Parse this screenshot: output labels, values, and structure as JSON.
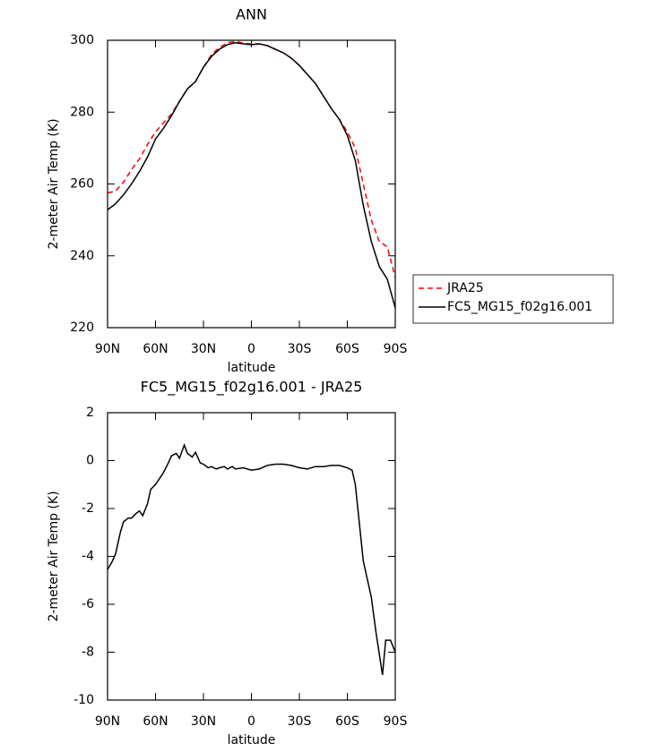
{
  "chart_data": [
    {
      "type": "line",
      "title": "ANN",
      "x_label": "latitude",
      "y_label": "2-meter Air Temp (K)",
      "x": [
        90,
        85,
        80,
        75,
        70,
        65,
        60,
        55,
        50,
        45,
        40,
        35,
        30,
        25,
        20,
        15,
        10,
        5,
        0,
        -5,
        -10,
        -15,
        -20,
        -25,
        -30,
        -35,
        -40,
        -45,
        -50,
        -55,
        -60,
        -65,
        -70,
        -75,
        -80,
        -85,
        -90
      ],
      "series": [
        {
          "name": "JRA25",
          "color": "#ff0000",
          "dash": true,
          "values": [
            257.5,
            258,
            260.5,
            264,
            267,
            271,
            274.5,
            277,
            279.5,
            283,
            286.5,
            288.5,
            292.5,
            296,
            298,
            299.3,
            299.7,
            299.2,
            299,
            299,
            298.5,
            297.5,
            296.5,
            295,
            293,
            290.5,
            288,
            284.5,
            281,
            278,
            274.5,
            270,
            260,
            250,
            244,
            242.5,
            234
          ]
        },
        {
          "name": "FC5_MG15_f02g16.001",
          "color": "#000000",
          "dash": false,
          "values": [
            252.8,
            254.5,
            257,
            260,
            263.5,
            267.5,
            272.5,
            275.5,
            279,
            283,
            286.5,
            288.5,
            292.5,
            295.5,
            297.5,
            298.8,
            299.3,
            299,
            298.8,
            299,
            298.5,
            297.5,
            296.5,
            295,
            293,
            290.5,
            288,
            284.5,
            281,
            278,
            273.5,
            266.5,
            254,
            244,
            237,
            233.5,
            225.5
          ]
        }
      ],
      "xlim": [
        90,
        -90
      ],
      "xticks": [
        {
          "value": 90,
          "label": "90N"
        },
        {
          "value": 60,
          "label": "60N"
        },
        {
          "value": 30,
          "label": "30N"
        },
        0,
        {
          "value": -30,
          "label": "30S"
        },
        {
          "value": -60,
          "label": "60S"
        },
        {
          "value": -90,
          "label": "90S"
        }
      ],
      "ylim": [
        220,
        300
      ],
      "yticks": [
        220,
        240,
        260,
        280,
        300
      ],
      "legend": "right"
    },
    {
      "type": "line",
      "title": "FC5_MG15_f02g16.001 - JRA25",
      "x_label": "latitude",
      "y_label": "2-meter Air Temp (K)",
      "x": [
        90,
        87,
        85,
        82,
        80,
        77,
        75,
        72,
        70,
        68,
        65,
        63,
        60,
        57,
        55,
        52,
        50,
        47,
        45,
        42,
        40,
        37,
        35,
        32,
        30,
        27,
        25,
        22,
        20,
        17,
        15,
        12,
        10,
        5,
        0,
        -5,
        -10,
        -15,
        -20,
        -25,
        -30,
        -35,
        -40,
        -45,
        -50,
        -55,
        -60,
        -63,
        -65,
        -70,
        -75,
        -78,
        -82,
        -84,
        -87,
        -90
      ],
      "series": [
        {
          "color": "#000000",
          "dash": false,
          "values": [
            -4.55,
            -4.2,
            -3.9,
            -3.0,
            -2.55,
            -2.4,
            -2.4,
            -2.2,
            -2.1,
            -2.3,
            -1.8,
            -1.2,
            -1.0,
            -0.7,
            -0.5,
            -0.1,
            0.2,
            0.3,
            0.1,
            0.65,
            0.3,
            0.15,
            0.35,
            -0.1,
            -0.15,
            -0.3,
            -0.25,
            -0.35,
            -0.3,
            -0.25,
            -0.35,
            -0.25,
            -0.35,
            -0.3,
            -0.4,
            -0.35,
            -0.2,
            -0.15,
            -0.15,
            -0.2,
            -0.3,
            -0.35,
            -0.25,
            -0.25,
            -0.2,
            -0.2,
            -0.3,
            -0.4,
            -1.0,
            -4.2,
            -5.7,
            -7.2,
            -8.95,
            -7.5,
            -7.5,
            -8.0
          ]
        }
      ],
      "xlim": [
        90,
        -90
      ],
      "xticks": [
        {
          "value": 90,
          "label": "90N"
        },
        {
          "value": 60,
          "label": "60N"
        },
        {
          "value": 30,
          "label": "30N"
        },
        0,
        {
          "value": -30,
          "label": "30S"
        },
        {
          "value": -60,
          "label": "60S"
        },
        {
          "value": -90,
          "label": "90S"
        }
      ],
      "ylim": [
        -10,
        2
      ],
      "yticks": [
        -10,
        -8,
        -6,
        -4,
        -2,
        0,
        2
      ]
    }
  ]
}
